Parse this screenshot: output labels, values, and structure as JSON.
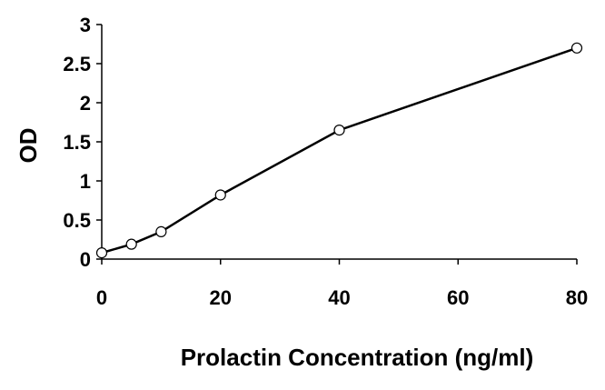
{
  "chart_data": {
    "type": "line",
    "title": "",
    "xlabel": "Prolactin Concentration (ng/ml)",
    "ylabel": "OD",
    "xlim": [
      0,
      80
    ],
    "ylim": [
      0,
      3
    ],
    "xticks": [
      0,
      20,
      40,
      60,
      80
    ],
    "yticks": [
      0,
      0.5,
      1,
      1.5,
      2,
      2.5,
      3
    ],
    "grid": false,
    "legend": "none",
    "series": [
      {
        "x": [
          0,
          5,
          10,
          20,
          40,
          80
        ],
        "y": [
          0.08,
          0.19,
          0.35,
          0.82,
          1.65,
          2.7
        ],
        "color": "#000000",
        "marker": "open-circle"
      }
    ]
  }
}
